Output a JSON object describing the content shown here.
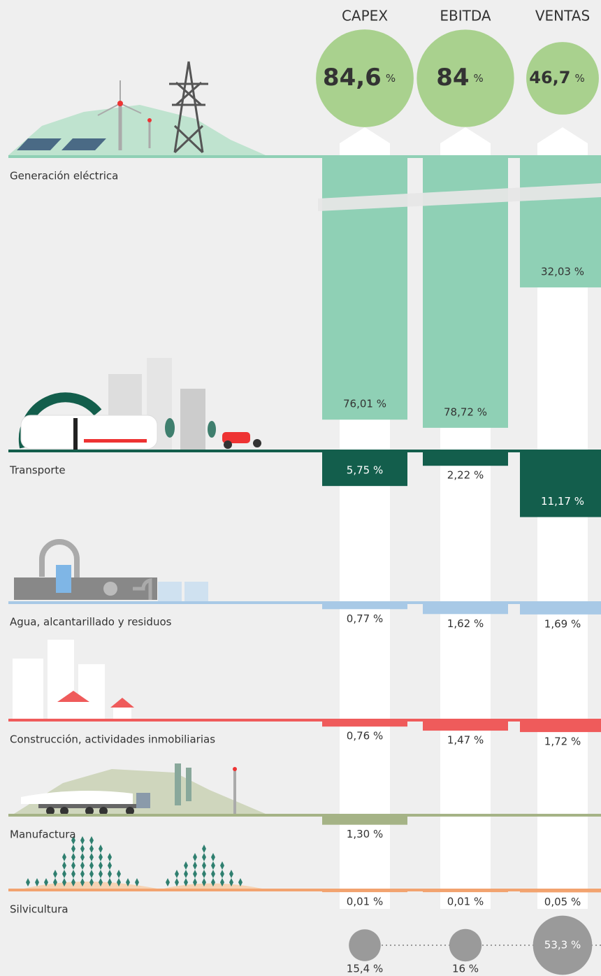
{
  "columns": [
    {
      "name": "CAPEX",
      "total": 84.6,
      "total_label": "84,6",
      "total_unit": "%",
      "other": 15.4,
      "other_label": "15,4 %"
    },
    {
      "name": "EBITDA",
      "total": 84,
      "total_label": "84",
      "total_unit": "%",
      "other": 16,
      "other_label": "16 %"
    },
    {
      "name": "VENTAS",
      "total": 46.7,
      "total_label": "46,7",
      "total_unit": "%",
      "other": 53.3,
      "other_label": "53,3 %"
    }
  ],
  "sectors": [
    {
      "name": "Generación eléctrica",
      "color": "#8fd0b5",
      "values": [
        76.01,
        78.72,
        32.03
      ],
      "value_labels": [
        "76,01 %",
        "78,72 %",
        "32,03 %"
      ]
    },
    {
      "name": "Transporte",
      "color": "#135e4c",
      "values": [
        5.75,
        2.22,
        11.17
      ],
      "value_labels": [
        "5,75 %",
        "2,22 %",
        "11,17 %"
      ]
    },
    {
      "name": "Agua, alcantarillado y residuos",
      "color": "#a8c9e6",
      "values": [
        0.77,
        1.62,
        1.69
      ],
      "value_labels": [
        "0,77 %",
        "1,62 %",
        "1,69 %"
      ]
    },
    {
      "name": "Construcción, actividades inmobiliarias",
      "color": "#ef5b5b",
      "values": [
        0.76,
        1.47,
        1.72
      ],
      "value_labels": [
        "0,76 %",
        "1,47 %",
        "1,72 %"
      ]
    },
    {
      "name": "Manufactura",
      "color": "#a5b386",
      "values": [
        1.3,
        null,
        null
      ],
      "value_labels": [
        "1,30 %",
        null,
        null
      ]
    },
    {
      "name": "Silvicultura",
      "color": "#f2a36f",
      "values": [
        0.01,
        0.01,
        0.05
      ],
      "value_labels": [
        "0,01 %",
        "0,01 %",
        "0,05 %"
      ]
    }
  ]
}
